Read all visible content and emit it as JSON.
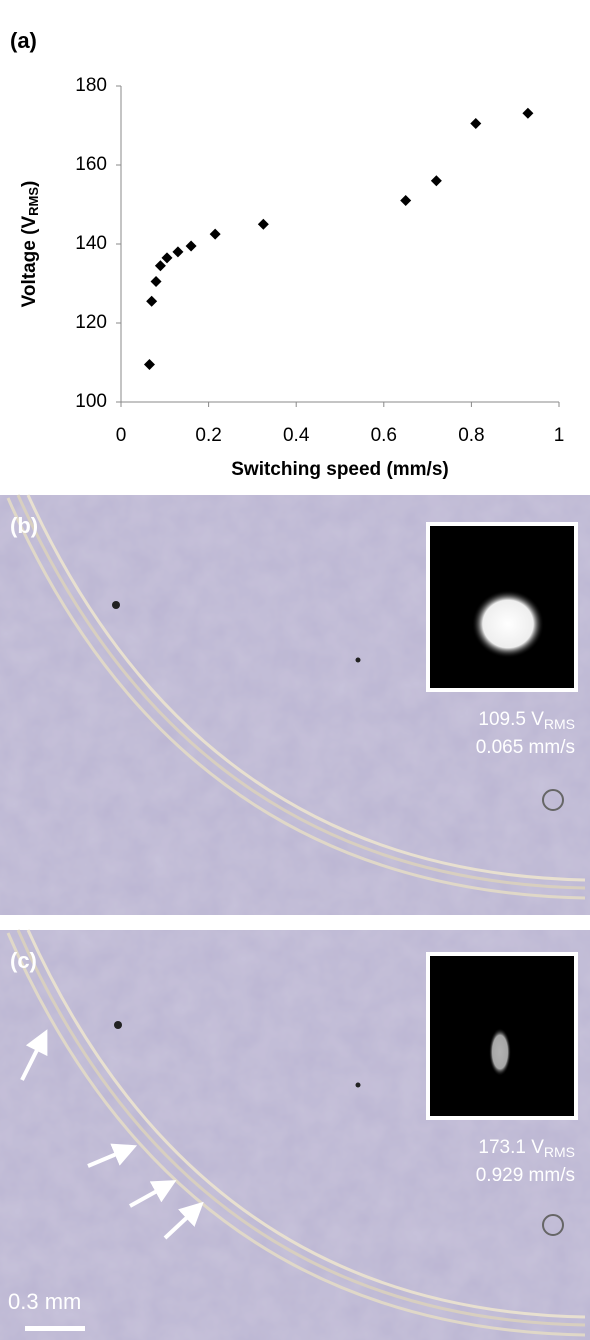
{
  "chart_data": {
    "type": "scatter",
    "panel_label": "(a)",
    "x_label": "Switching speed (mm/s)",
    "y_label": {
      "main": "Voltage (V",
      "sub": "RMS",
      "end": ")"
    },
    "x": [
      0.065,
      0.07,
      0.08,
      0.09,
      0.105,
      0.13,
      0.16,
      0.215,
      0.325,
      0.65,
      0.72,
      0.81,
      0.929
    ],
    "values": [
      109.5,
      125.5,
      130.5,
      134.5,
      136.5,
      138,
      139.5,
      142.5,
      145,
      151,
      156,
      170.5,
      173.1
    ],
    "color": "#000000",
    "xlim": [
      0,
      1
    ],
    "ylim": [
      100,
      180
    ],
    "xticks": [
      0,
      0.2,
      0.4,
      0.6,
      0.8,
      1
    ],
    "yticks": [
      100,
      120,
      140,
      160,
      180
    ]
  },
  "panels": [
    {
      "label": "(b)",
      "voltage": "109.5 V",
      "voltage_sub": "RMS",
      "speed": "0.065 mm/s"
    },
    {
      "label": "(c)",
      "voltage": "173.1 V",
      "voltage_sub": "RMS",
      "speed": "0.929 mm/s"
    }
  ],
  "scale_bar": "0.3 mm"
}
